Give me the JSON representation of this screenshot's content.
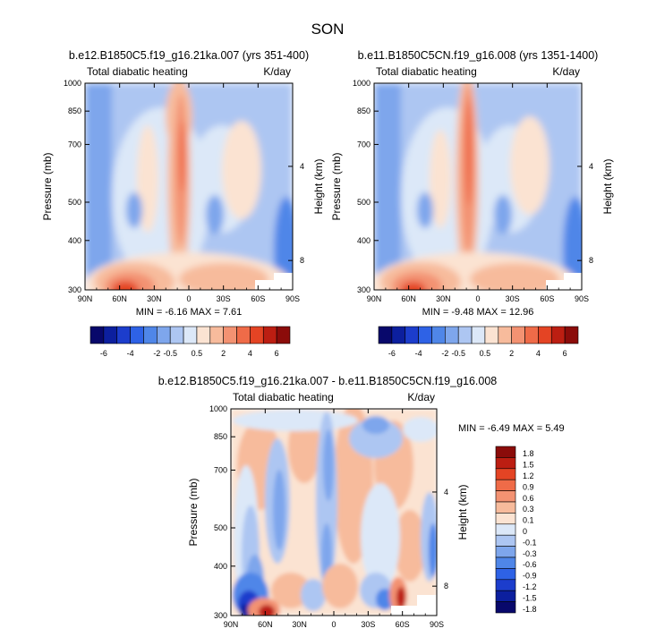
{
  "figure": {
    "title": "SON",
    "panel_a": {
      "title": "b.e12.B1850C5.f19_g16.21ka.007 (yrs 351-400)",
      "left_label": "Total diabatic heating",
      "right_label": "K/day",
      "stats": "MIN =  -6.16  MAX =  7.61"
    },
    "panel_b": {
      "title": "b.e11.B1850C5CN.f19_g16.008 (yrs 1351-1400)",
      "left_label": "Total diabatic heating",
      "right_label": "K/day",
      "stats": "MIN =  -9.48  MAX =  12.96"
    },
    "panel_c": {
      "title": "b.e12.B1850C5.f19_g16.21ka.007 - b.e11.B1850C5CN.f19_g16.008",
      "left_label": "Total diabatic heating",
      "right_label": "K/day",
      "stats": "MIN =  -6.49  MAX =  5.49"
    }
  },
  "chart_data": [
    {
      "type": "heatmap",
      "title": "b.e12.B1850C5.f19_g16.21ka.007 (yrs 351-400)",
      "subtitle_left": "Total diabatic heating",
      "units": "K/day",
      "xlabel": "",
      "ylabel": "Pressure (mb)",
      "ylabel_right": "Height (km)",
      "x_ticks": [
        "90N",
        "60N",
        "30N",
        "0",
        "30S",
        "60S",
        "90S"
      ],
      "x_values": [
        90,
        60,
        30,
        0,
        -30,
        -60,
        -90
      ],
      "y_ticks": [
        "300",
        "400",
        "500",
        "700",
        "850",
        "1000"
      ],
      "y_values": [
        300,
        400,
        500,
        700,
        850,
        1000
      ],
      "y2_ticks": [
        "8",
        "4"
      ],
      "ylim": [
        1000,
        300
      ],
      "min": -6.16,
      "max": 7.61,
      "colorbar_levels": [
        -6,
        -5,
        -4,
        -3,
        -2,
        -1,
        -0.5,
        0,
        0.5,
        1,
        2,
        3,
        4,
        5,
        6
      ],
      "colorbar_labels": [
        "-6",
        "-4",
        "-2",
        "-0.5",
        "0.5",
        "2",
        "4",
        "6"
      ]
    },
    {
      "type": "heatmap",
      "title": "b.e11.B1850C5CN.f19_g16.008 (yrs 1351-1400)",
      "subtitle_left": "Total diabatic heating",
      "units": "K/day",
      "xlabel": "",
      "ylabel": "Pressure (mb)",
      "ylabel_right": "Height (km)",
      "x_ticks": [
        "90N",
        "60N",
        "30N",
        "0",
        "30S",
        "60S",
        "90S"
      ],
      "x_values": [
        90,
        60,
        30,
        0,
        -30,
        -60,
        -90
      ],
      "y_ticks": [
        "300",
        "400",
        "500",
        "700",
        "850",
        "1000"
      ],
      "y_values": [
        300,
        400,
        500,
        700,
        850,
        1000
      ],
      "y2_ticks": [
        "8",
        "4"
      ],
      "ylim": [
        1000,
        300
      ],
      "min": -9.48,
      "max": 12.96,
      "colorbar_levels": [
        -6,
        -5,
        -4,
        -3,
        -2,
        -1,
        -0.5,
        0,
        0.5,
        1,
        2,
        3,
        4,
        5,
        6
      ],
      "colorbar_labels": [
        "-6",
        "-4",
        "-2",
        "-0.5",
        "0.5",
        "2",
        "4",
        "6"
      ]
    },
    {
      "type": "heatmap",
      "title": "b.e12.B1850C5.f19_g16.21ka.007 - b.e11.B1850C5CN.f19_g16.008",
      "subtitle_left": "Total diabatic heating",
      "units": "K/day",
      "xlabel": "",
      "ylabel": "Pressure (mb)",
      "ylabel_right": "Height (km)",
      "x_ticks": [
        "90N",
        "60N",
        "30N",
        "0",
        "30S",
        "60S",
        "90S"
      ],
      "x_values": [
        90,
        60,
        30,
        0,
        -30,
        -60,
        -90
      ],
      "y_ticks": [
        "300",
        "400",
        "500",
        "700",
        "850",
        "1000"
      ],
      "y_values": [
        300,
        400,
        500,
        700,
        850,
        1000
      ],
      "y2_ticks": [
        "8",
        "4"
      ],
      "ylim": [
        1000,
        300
      ],
      "min": -6.49,
      "max": 5.49,
      "colorbar_levels": [
        1.8,
        1.5,
        1.2,
        0.9,
        0.6,
        0.3,
        0.1,
        0,
        -0.1,
        -0.3,
        -0.6,
        -0.9,
        -1.2,
        -1.5,
        -1.8
      ],
      "colorbar_labels": [
        "1.8",
        "1.5",
        "1.2",
        "0.9",
        "0.6",
        "0.3",
        "0.1",
        "0",
        "-0.1",
        "-0.3",
        "-0.6",
        "-0.9",
        "-1.2",
        "-1.5",
        "-1.8"
      ]
    }
  ],
  "colors": {
    "palette": [
      "#08086b",
      "#0c1f9e",
      "#1c3dcc",
      "#2e62e6",
      "#4f86e8",
      "#7ea6ec",
      "#adc6f2",
      "#dce8f8",
      "#fbe3d2",
      "#f7bb9c",
      "#f39272",
      "#ef6b48",
      "#e44424",
      "#bc1e12",
      "#8b0c0a"
    ],
    "background": "#ffffff"
  }
}
